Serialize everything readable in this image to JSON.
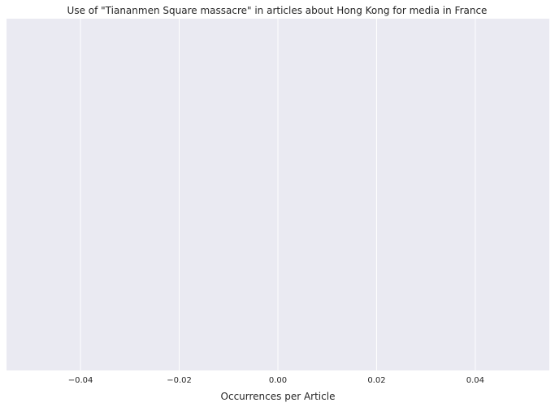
{
  "chart_data": {
    "type": "bar",
    "orientation": "horizontal",
    "title": "Use of \"Tiananmen Square massacre\" in articles about Hong Kong for media in France",
    "xlabel": "Occurrences per Article",
    "ylabel": "",
    "categories": [],
    "values": [],
    "xlim": [
      -0.055,
      0.055
    ],
    "xticks": [
      -0.04,
      -0.02,
      0.0,
      0.02,
      0.04
    ],
    "xtick_labels": [
      "−0.04",
      "−0.02",
      "0.00",
      "0.02",
      "0.04"
    ],
    "grid": true,
    "style": {
      "background": "#eaeaf2",
      "grid_color": "#ffffff",
      "text_color": "#262626"
    }
  }
}
